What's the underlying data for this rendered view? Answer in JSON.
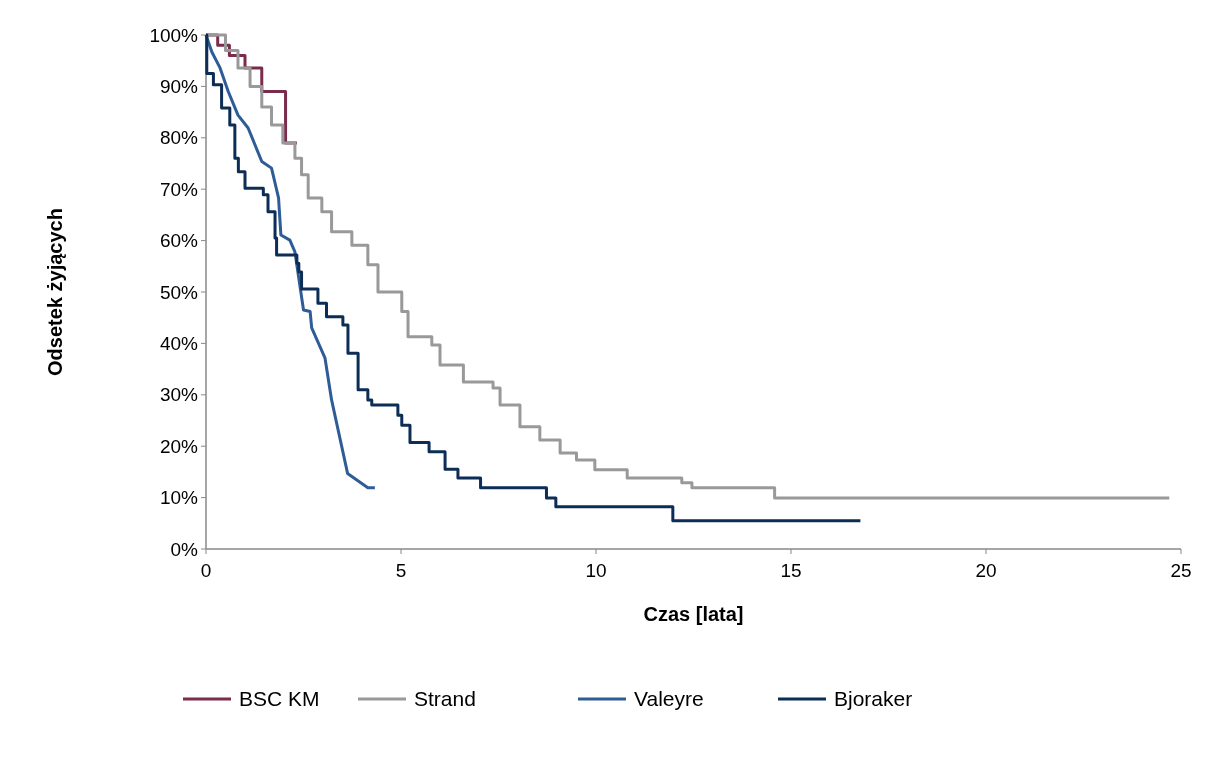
{
  "chart_data": {
    "type": "step",
    "xlabel": "Czas [lata]",
    "ylabel": "Odsetek żyjących",
    "xlim": [
      0,
      25
    ],
    "xticks": [
      0,
      5,
      10,
      15,
      20,
      25
    ],
    "ylim": [
      0,
      100
    ],
    "yticks": [
      {
        "value": 0,
        "label": "0%"
      },
      {
        "value": 10,
        "label": "10%"
      },
      {
        "value": 20,
        "label": "20%"
      },
      {
        "value": 30,
        "label": "30%"
      },
      {
        "value": 40,
        "label": "40%"
      },
      {
        "value": 50,
        "label": "50%"
      },
      {
        "value": 60,
        "label": "60%"
      },
      {
        "value": 70,
        "label": "70%"
      },
      {
        "value": 80,
        "label": "80%"
      },
      {
        "value": 90,
        "label": "90%"
      },
      {
        "value": 100,
        "label": "100%"
      }
    ],
    "grid": false,
    "legend": "bottom",
    "series": [
      {
        "name": "BSC KM",
        "color": "#7b2c4c",
        "x": [
          0,
          0.3,
          0.6,
          1.0,
          1.43,
          2.04,
          2.33
        ],
        "values": [
          100,
          98,
          96,
          93.6,
          89,
          79,
          79
        ]
      },
      {
        "name": "Strand",
        "color": "#999999",
        "x": [
          0,
          0.5,
          0.82,
          1.13,
          1.43,
          1.68,
          1.97,
          2.28,
          2.45,
          2.62,
          2.97,
          3.22,
          3.74,
          4.15,
          4.41,
          5.02,
          5.18,
          5.79,
          6.0,
          6.6,
          7.36,
          7.54,
          8.05,
          8.56,
          9.08,
          9.5,
          9.97,
          10.8,
          12.2,
          12.46,
          14.58,
          24.7
        ],
        "values": [
          100,
          97,
          93.6,
          90,
          86,
          82.5,
          79,
          76,
          72.8,
          68.3,
          65.6,
          61.7,
          59.1,
          55.3,
          50,
          46.2,
          41.3,
          39.7,
          35.8,
          32.5,
          31.3,
          28,
          23.8,
          21.2,
          18.7,
          17.3,
          15.4,
          13.8,
          12.9,
          11.9,
          9.9,
          9.9
        ]
      },
      {
        "name": "Valeyre",
        "type": "line",
        "color": "#2e5c96",
        "x": [
          0,
          0.15,
          0.36,
          0.57,
          0.82,
          1.08,
          1.43,
          1.68,
          1.86,
          1.92,
          2.15,
          2.28,
          2.5,
          2.67,
          2.71,
          3.05,
          3.22,
          3.63,
          4.15,
          4.33
        ],
        "values": [
          100,
          96.7,
          93.6,
          89,
          84.4,
          81.9,
          75.4,
          74.1,
          68.3,
          61.1,
          60.1,
          57.8,
          46.5,
          46.2,
          43,
          37.2,
          29,
          14.7,
          11.9,
          11.9
        ]
      },
      {
        "name": "Bjoraker",
        "color": "#0c2d55",
        "x": [
          0,
          0.02,
          0.19,
          0.4,
          0.61,
          0.74,
          0.83,
          1.0,
          1.47,
          1.59,
          1.77,
          1.81,
          2.33,
          2.38,
          2.45,
          2.87,
          3.09,
          3.51,
          3.64,
          3.9,
          4.15,
          4.25,
          4.92,
          5.02,
          5.23,
          5.72,
          6.13,
          6.46,
          7.04,
          8.73,
          8.97,
          11.97,
          16.78
        ],
        "values": [
          100,
          92.5,
          90.3,
          85.8,
          82.5,
          76,
          73.4,
          70.2,
          68.9,
          65.6,
          60.5,
          57.2,
          55.6,
          53.9,
          50.6,
          47.8,
          45.2,
          43.6,
          38.1,
          31,
          29,
          28,
          26,
          24.1,
          20.7,
          18.9,
          15.5,
          13.8,
          11.9,
          9.9,
          8.2,
          5.5,
          5.5
        ]
      }
    ]
  }
}
